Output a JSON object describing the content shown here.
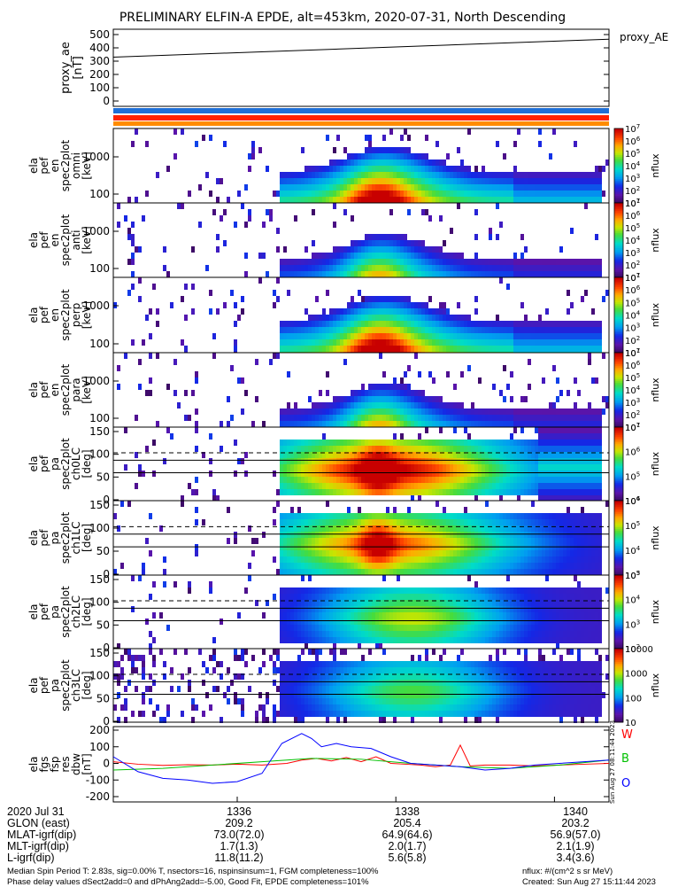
{
  "title": "PRELIMINARY ELFIN-A EPDE, alt=453km, 2020-07-31, North Descending",
  "colors": {
    "spectrogram_dark": "#2b0a52",
    "spectrogram_high": "#d10000",
    "bar_blue": "#1f6fd6",
    "bar_red": "#ff2200",
    "bar_orange": "#ff8c00",
    "W": "#ff0000",
    "B": "#00c000",
    "O": "#0000ff"
  },
  "chart_data": [
    {
      "type": "line",
      "name": "proxy_AE",
      "ylabel": "proxy_ae\n[nT]",
      "yticks": [
        0,
        100,
        200,
        300,
        400,
        500
      ],
      "ylim": [
        0,
        500
      ],
      "series": [
        {
          "name": "proxy_AE",
          "x": [
            0,
            1
          ],
          "values": [
            330,
            465
          ]
        }
      ]
    },
    {
      "type": "heatmap",
      "ylabel": "ela\npef\nen\nspec2plot\nomni\n[keV]",
      "yticks": [
        "100",
        "1000"
      ],
      "cbar_label": "nflux",
      "cbar_ticks": [
        "10^1",
        "10^2",
        "10^3",
        "10^4",
        "10^5",
        "10^6",
        "10^7"
      ]
    },
    {
      "type": "heatmap",
      "ylabel": "ela\npef\nen\nspec2plot\nanti\n[keV]",
      "yticks": [
        "100",
        "1000"
      ],
      "cbar_label": "nflux",
      "cbar_ticks": [
        "10^1",
        "10^2",
        "10^3",
        "10^4",
        "10^5",
        "10^6",
        "10^7"
      ]
    },
    {
      "type": "heatmap",
      "ylabel": "ela\npef\nen\nspec2plot\nperp\n[keV]",
      "yticks": [
        "100",
        "1000"
      ],
      "cbar_label": "nflux",
      "cbar_ticks": [
        "10^1",
        "10^2",
        "10^3",
        "10^4",
        "10^5",
        "10^6",
        "10^7"
      ]
    },
    {
      "type": "heatmap",
      "ylabel": "ela\npef\nen\nspec2plot\npara\n[keV]",
      "yticks": [
        "100",
        "1000"
      ],
      "cbar_label": "nflux",
      "cbar_ticks": [
        "10^1",
        "10^2",
        "10^3",
        "10^4",
        "10^5",
        "10^6",
        "10^7"
      ]
    },
    {
      "type": "heatmap",
      "ylabel": "ela\npef\npa\nspec2plot\nch0LC\n[deg]",
      "yticks": [
        "0",
        "50",
        "100",
        "150"
      ],
      "cbar_label": "nflux",
      "cbar_ticks": [
        "10^4",
        "10^5",
        "10^6",
        "10^7"
      ]
    },
    {
      "type": "heatmap",
      "ylabel": "ela\npef\npa\nspec2plot\nch1LC\n[deg]",
      "yticks": [
        "0",
        "50",
        "100",
        "150"
      ],
      "cbar_label": "nflux",
      "cbar_ticks": [
        "10^3",
        "10^4",
        "10^5",
        "10^6"
      ]
    },
    {
      "type": "heatmap",
      "ylabel": "ela\npef\npa\nspec2plot\nch2LC\n[deg]",
      "yticks": [
        "0",
        "50",
        "100",
        "150"
      ],
      "cbar_label": "nflux",
      "cbar_ticks": [
        "10^2",
        "10^3",
        "10^4",
        "10^5"
      ]
    },
    {
      "type": "heatmap",
      "ylabel": "ela\npef\npa\nspec2plot\nch3LC\n[deg]",
      "yticks": [
        "0",
        "50",
        "100",
        "150"
      ],
      "cbar_label": "nflux",
      "cbar_ticks": [
        "10",
        "100",
        "1000",
        "10000"
      ]
    },
    {
      "type": "line",
      "ylabel": "ela\nfgs\nfsp\nres\ndbw\n[nT]",
      "yticks": [
        -200,
        -100,
        0,
        100,
        200
      ],
      "ylim": [
        -200,
        200
      ],
      "side_labels": [
        "W",
        "B",
        "O"
      ],
      "series": [
        {
          "name": "W",
          "x": [
            0,
            0.05,
            0.1,
            0.15,
            0.2,
            0.25,
            0.3,
            0.35,
            0.38,
            0.41,
            0.44,
            0.47,
            0.5,
            0.53,
            0.56,
            0.59,
            0.62,
            0.65,
            0.68,
            0.7,
            0.72,
            0.75,
            0.8,
            0.85,
            0.9,
            0.95,
            1.0
          ],
          "values": [
            10,
            -5,
            -12,
            -8,
            -10,
            -5,
            -10,
            0,
            20,
            30,
            15,
            35,
            10,
            40,
            0,
            -5,
            -10,
            -20,
            -10,
            110,
            -15,
            -10,
            -10,
            -15,
            -10,
            -5,
            0
          ]
        },
        {
          "name": "B",
          "x": [
            0,
            0.1,
            0.2,
            0.3,
            0.4,
            0.5,
            0.6,
            0.7,
            0.8,
            0.9,
            1.0
          ],
          "values": [
            -40,
            -30,
            -10,
            10,
            30,
            25,
            0,
            -20,
            -30,
            -10,
            20
          ]
        },
        {
          "name": "O",
          "x": [
            0,
            0.05,
            0.1,
            0.15,
            0.2,
            0.25,
            0.3,
            0.34,
            0.38,
            0.4,
            0.42,
            0.45,
            0.48,
            0.52,
            0.56,
            0.6,
            0.65,
            0.7,
            0.75,
            0.8,
            0.85,
            0.9,
            0.95,
            1.0
          ],
          "values": [
            40,
            -50,
            -90,
            -100,
            -120,
            -110,
            -60,
            120,
            180,
            150,
            100,
            120,
            100,
            90,
            40,
            0,
            -10,
            -20,
            -40,
            -30,
            -10,
            0,
            10,
            20
          ]
        }
      ]
    }
  ],
  "footer": {
    "labels": [
      "2020 Jul 31",
      "GLON (east)",
      "MLAT-igrf(dip)",
      "MLT-igrf(dip)",
      "L-igrf(dip)"
    ],
    "col1": [
      "1336",
      "209.2",
      "73.0(72.0)",
      "1.7(1.3)",
      "11.8(11.2)"
    ],
    "col2": [
      "1338",
      "205.4",
      "64.9(64.6)",
      "2.0(1.7)",
      "5.6(5.8)"
    ],
    "col3": [
      "1340",
      "203.2",
      "56.9(57.0)",
      "2.1(1.9)",
      "3.4(3.6)"
    ],
    "line1": "Median Spin Period T: 2.83s, sig=0.00% T, nsectors=16, nspinsinsum=1, FGM completeness=100%",
    "line2": "Phase delay values dSect2add=0 and dPhAng2add=-5.00, Good Fit, EPDE completeness=101%",
    "nflux_units": "nflux: #/(cm^2 s sr MeV)",
    "created": "Created: Sun Aug 27 15:11:44 2023",
    "side_stamp": "Sun Aug 27 08:11:44 2023"
  }
}
